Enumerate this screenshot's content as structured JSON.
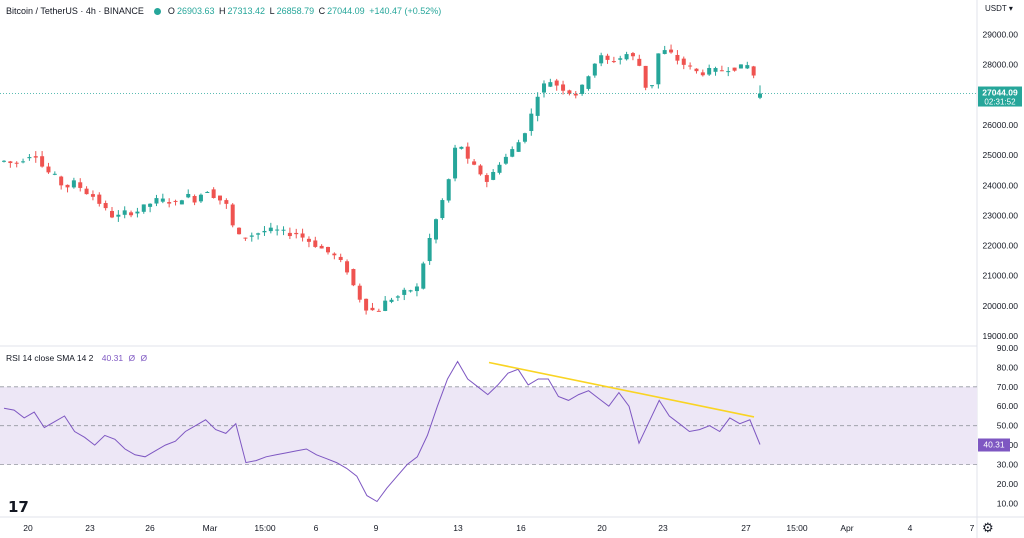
{
  "header": {
    "symbol": "Bitcoin / TetherUS · 4h · BINANCE",
    "o_label": "O",
    "o": "26903.63",
    "h_label": "H",
    "h": "27313.42",
    "l_label": "L",
    "l": "26858.79",
    "c_label": "C",
    "c": "27044.09",
    "change": "+140.47 (+0.52%)"
  },
  "currency_label": "USDT",
  "price_axis": {
    "ticks": [
      "29000.00",
      "28000.00",
      "27000.00",
      "26000.00",
      "25000.00",
      "24000.00",
      "23000.00",
      "22000.00",
      "21000.00",
      "20000.00",
      "19000.00"
    ],
    "last_price": "27044.09",
    "countdown": "02:31:52",
    "ylim": [
      18700,
      29550
    ]
  },
  "rsi_header": {
    "label": "RSI 14 close SMA 14 2",
    "value": "40.31",
    "extra1": "Ø",
    "extra2": "Ø"
  },
  "rsi_axis": {
    "ticks": [
      "90.00",
      "80.00",
      "70.00",
      "60.00",
      "50.00",
      "40.00",
      "30.00",
      "20.00",
      "10.00"
    ],
    "last_value": "40.31",
    "band": [
      30,
      70
    ],
    "mid": 50,
    "ylim": [
      3,
      91
    ]
  },
  "time_axis": [
    "20",
    "23",
    "26",
    "Mar",
    "15:00",
    "6",
    "9",
    "13",
    "16",
    "20",
    "23",
    "27",
    "15:00",
    "Apr",
    "4",
    "7"
  ],
  "colors": {
    "up": "#26a69a",
    "down": "#ef5350",
    "rsi": "#7e57c2",
    "trend": "#f9d423",
    "band": "#ede7f6"
  },
  "chart_data": [
    {
      "type": "candlestick",
      "title": "Bitcoin / TetherUS · 4h · BINANCE",
      "interval": "4h",
      "ylim": [
        18700,
        29550
      ],
      "last": {
        "open": 26903.63,
        "high": 27313.42,
        "low": 26858.79,
        "close": 27044.09
      },
      "path_closes": [
        24800,
        24700,
        24900,
        25100,
        24500,
        24300,
        23900,
        24100,
        23800,
        23600,
        23200,
        22900,
        23100,
        23100,
        23300,
        23500,
        23500,
        23400,
        23700,
        23500,
        23900,
        23600,
        23400,
        22300,
        22300,
        22400,
        22500,
        22500,
        22400,
        22400,
        22200,
        22000,
        21800,
        21600,
        21200,
        20400,
        19900,
        19800,
        20200,
        20300,
        20500,
        20600,
        22000,
        23000,
        24000,
        25600,
        24800,
        24500,
        24100,
        24700,
        25000,
        25400,
        26000,
        27100,
        27500,
        27300,
        27100,
        27000,
        27700,
        28300,
        28100,
        28200,
        28400,
        28000,
        26900,
        28500,
        28400,
        28100,
        27900,
        27700,
        27800,
        27800,
        27900,
        27900,
        28000,
        27044
      ]
    },
    {
      "type": "line",
      "title": "RSI 14 close SMA 14 2",
      "ylim": [
        3,
        91
      ],
      "values": [
        59,
        58,
        54,
        57,
        49,
        52,
        55,
        47,
        44,
        40,
        45,
        43,
        38,
        35,
        34,
        37,
        40,
        42,
        47,
        50,
        53,
        48,
        46,
        51,
        31,
        32,
        34,
        35,
        36,
        37,
        38,
        35,
        33,
        31,
        28,
        24,
        14,
        11,
        18,
        24,
        30,
        34,
        45,
        60,
        74,
        83,
        74,
        70,
        66,
        71,
        77,
        79,
        71,
        74,
        74,
        65,
        63,
        66,
        68,
        64,
        60,
        67,
        60,
        41,
        52,
        63,
        55,
        51,
        47,
        48,
        50,
        47,
        54,
        51,
        53,
        40.31
      ],
      "current": 40.31,
      "band": [
        30,
        70
      ],
      "trendline": {
        "from": 82.5,
        "to": 54.5
      }
    }
  ]
}
